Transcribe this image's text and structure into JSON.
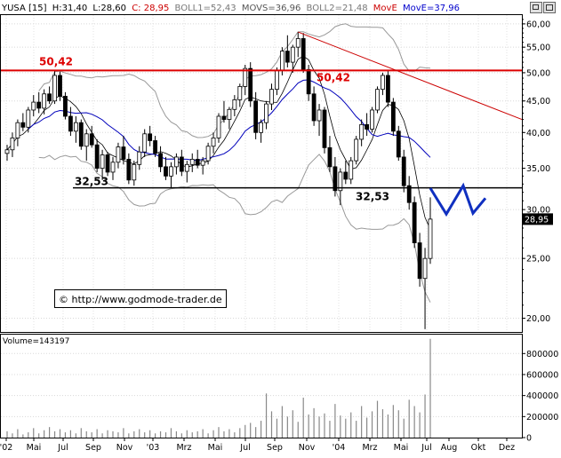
{
  "chart_data": [
    {
      "type": "candlestick",
      "header": {
        "symbol": "YUSA [15]",
        "high": "H:31,40",
        "low": "L:28,60",
        "close": "C: 28,95",
        "boll1": "BOLL1=52,43",
        "movs": "MOVS=36,96",
        "boll2": "BOLL2=21,48",
        "move_label": "MovE",
        "move_value": "MovE=37,96"
      },
      "colors": {
        "resistance": "#dd0000",
        "trendline": "#cc0000",
        "support": "#000000",
        "bollinger": "#999999",
        "ma_short": "#000000",
        "ma_long": "#0000bb",
        "projection": "#1030c0",
        "volume": "#888888"
      },
      "ylim": [
        19,
        62
      ],
      "log_scale": true,
      "y_ticks": [
        {
          "value": 20,
          "label": "20,00"
        },
        {
          "value": 25,
          "label": "25,00"
        },
        {
          "value": 30,
          "label": "30,00"
        },
        {
          "value": 35,
          "label": "35,00"
        },
        {
          "value": 40,
          "label": "40,00"
        },
        {
          "value": 45,
          "label": "45,00"
        },
        {
          "value": 50,
          "label": "50,00"
        },
        {
          "value": 55,
          "label": "55,00"
        },
        {
          "value": 60,
          "label": "60,00"
        }
      ],
      "last_price": {
        "value": 28.95,
        "label": "28,95"
      },
      "levels": {
        "resistance": {
          "value": 50.42,
          "label": "50,42"
        },
        "support": {
          "value": 32.53,
          "label": "32,53"
        }
      },
      "x_ticks": [
        "'02",
        "Mai",
        "Jul",
        "Sep",
        "Nov",
        "'03",
        "Mrz",
        "Mai",
        "Jul",
        "Sep",
        "Nov",
        "'04",
        "Mrz",
        "Mai",
        "Jul",
        "Aug",
        "Okt",
        "Dez"
      ],
      "watermark": "© http://www.godmode-trader.de",
      "ohlc_weekly": [
        [
          37.0,
          38.2,
          36.0,
          37.5
        ],
        [
          37.5,
          40.0,
          36.5,
          39.2
        ],
        [
          39.2,
          42.0,
          38.0,
          41.5
        ],
        [
          41.5,
          43.0,
          40.2,
          40.8
        ],
        [
          40.8,
          44.0,
          40.0,
          43.5
        ],
        [
          43.5,
          46.0,
          42.5,
          44.8
        ],
        [
          44.8,
          46.5,
          43.0,
          43.8
        ],
        [
          43.8,
          47.0,
          42.8,
          46.2
        ],
        [
          46.2,
          47.5,
          44.5,
          45.0
        ],
        [
          45.0,
          50.42,
          44.5,
          49.5
        ],
        [
          49.5,
          50.2,
          45.0,
          45.8
        ],
        [
          45.8,
          46.5,
          42.0,
          42.5
        ],
        [
          42.5,
          44.0,
          39.5,
          40.2
        ],
        [
          40.2,
          42.5,
          38.5,
          41.5
        ],
        [
          41.5,
          42.0,
          37.5,
          38.0
        ],
        [
          38.0,
          40.5,
          36.0,
          39.8
        ],
        [
          39.8,
          41.0,
          37.8,
          38.2
        ],
        [
          38.2,
          39.0,
          34.5,
          35.0
        ],
        [
          35.0,
          37.5,
          33.5,
          36.8
        ],
        [
          36.8,
          37.2,
          34.0,
          34.5
        ],
        [
          34.5,
          36.5,
          33.5,
          35.8
        ],
        [
          35.8,
          38.5,
          35.0,
          37.9
        ],
        [
          37.9,
          39.5,
          35.5,
          36.2
        ],
        [
          36.2,
          37.0,
          33.0,
          33.5
        ],
        [
          33.5,
          36.0,
          32.8,
          35.5
        ],
        [
          35.5,
          38.0,
          34.8,
          37.2
        ],
        [
          37.2,
          40.5,
          36.5,
          39.8
        ],
        [
          39.8,
          41.0,
          38.0,
          38.8
        ],
        [
          38.8,
          39.5,
          36.5,
          37.0
        ],
        [
          37.0,
          38.0,
          34.5,
          35.2
        ],
        [
          35.2,
          36.5,
          33.5,
          34.0
        ],
        [
          34.0,
          35.8,
          32.6,
          35.2
        ],
        [
          35.2,
          37.0,
          34.2,
          36.5
        ],
        [
          36.5,
          37.5,
          34.0,
          34.6
        ],
        [
          34.6,
          36.0,
          33.2,
          35.5
        ],
        [
          35.5,
          37.0,
          34.5,
          36.2
        ],
        [
          36.2,
          37.5,
          35.0,
          35.4
        ],
        [
          35.4,
          36.5,
          34.2,
          36.0
        ],
        [
          36.0,
          38.5,
          35.5,
          38.0
        ],
        [
          38.0,
          40.0,
          37.0,
          39.2
        ],
        [
          39.2,
          43.0,
          38.5,
          42.5
        ],
        [
          42.5,
          45.0,
          41.5,
          42.0
        ],
        [
          42.0,
          44.0,
          40.5,
          43.6
        ],
        [
          43.6,
          46.0,
          42.5,
          45.2
        ],
        [
          45.2,
          48.0,
          44.0,
          47.5
        ],
        [
          47.5,
          51.5,
          46.0,
          50.8
        ],
        [
          50.8,
          52.0,
          44.0,
          45.0
        ],
        [
          45.0,
          46.5,
          39.0,
          40.0
        ],
        [
          40.0,
          42.0,
          38.5,
          41.5
        ],
        [
          41.5,
          45.0,
          40.5,
          44.5
        ],
        [
          44.5,
          48.0,
          43.5,
          47.0
        ],
        [
          47.0,
          51.0,
          46.0,
          50.5
        ],
        [
          50.5,
          55.0,
          49.5,
          54.2
        ],
        [
          54.2,
          57.5,
          51.0,
          52.0
        ],
        [
          52.0,
          55.5,
          50.0,
          55.0
        ],
        [
          55.0,
          58.2,
          53.0,
          56.8
        ],
        [
          56.8,
          58.0,
          50.0,
          50.6
        ],
        [
          50.6,
          51.5,
          45.0,
          46.2
        ],
        [
          46.2,
          47.5,
          41.0,
          41.8
        ],
        [
          41.8,
          44.5,
          39.5,
          43.5
        ],
        [
          43.5,
          44.0,
          37.0,
          37.8
        ],
        [
          37.8,
          39.5,
          34.5,
          35.2
        ],
        [
          35.2,
          36.5,
          31.5,
          32.2
        ],
        [
          32.2,
          35.0,
          30.5,
          34.5
        ],
        [
          34.5,
          36.0,
          33.0,
          33.6
        ],
        [
          33.6,
          36.5,
          33.0,
          36.0
        ],
        [
          36.0,
          39.5,
          35.5,
          39.0
        ],
        [
          39.0,
          42.0,
          38.0,
          41.2
        ],
        [
          41.2,
          43.0,
          39.5,
          40.5
        ],
        [
          40.5,
          44.0,
          40.0,
          43.5
        ],
        [
          43.5,
          47.5,
          43.0,
          47.0
        ],
        [
          47.0,
          50.0,
          46.0,
          49.5
        ],
        [
          49.5,
          50.3,
          44.0,
          44.8
        ],
        [
          44.8,
          45.5,
          39.5,
          40.2
        ],
        [
          40.2,
          41.0,
          36.0,
          36.5
        ],
        [
          36.5,
          37.5,
          32.0,
          32.8
        ],
        [
          32.8,
          34.0,
          30.0,
          30.8
        ],
        [
          30.8,
          31.5,
          26.0,
          26.5
        ],
        [
          26.5,
          27.5,
          22.5,
          23.2
        ],
        [
          23.2,
          26.0,
          19.2,
          25.0
        ],
        [
          25.0,
          31.4,
          24.5,
          28.95
        ]
      ],
      "volume": {
        "y_ticks": [
          {
            "value": 0,
            "label": "0"
          },
          {
            "value": 200000,
            "label": "200000"
          },
          {
            "value": 400000,
            "label": "400000"
          },
          {
            "value": 600000,
            "label": "600000"
          },
          {
            "value": 800000,
            "label": "800000"
          }
        ],
        "label": "Volume",
        "value_label": "=143197",
        "ylim": [
          0,
          980000
        ],
        "bars_weekly": [
          60000,
          40000,
          80000,
          30000,
          50000,
          90000,
          40000,
          70000,
          100000,
          60000,
          80000,
          50000,
          70000,
          40000,
          90000,
          60000,
          50000,
          80000,
          40000,
          70000,
          60000,
          50000,
          90000,
          40000,
          60000,
          80000,
          50000,
          70000,
          40000,
          60000,
          50000,
          90000,
          60000,
          40000,
          70000,
          50000,
          60000,
          80000,
          40000,
          70000,
          100000,
          60000,
          80000,
          50000,
          90000,
          120000,
          140000,
          100000,
          160000,
          420000,
          250000,
          180000,
          300000,
          200000,
          260000,
          150000,
          380000,
          220000,
          280000,
          200000,
          230000,
          160000,
          320000,
          210000,
          180000,
          240000,
          160000,
          300000,
          190000,
          250000,
          350000,
          270000,
          220000,
          310000,
          260000,
          180000,
          360000,
          300000,
          240000,
          410000,
          940000
        ]
      }
    }
  ]
}
